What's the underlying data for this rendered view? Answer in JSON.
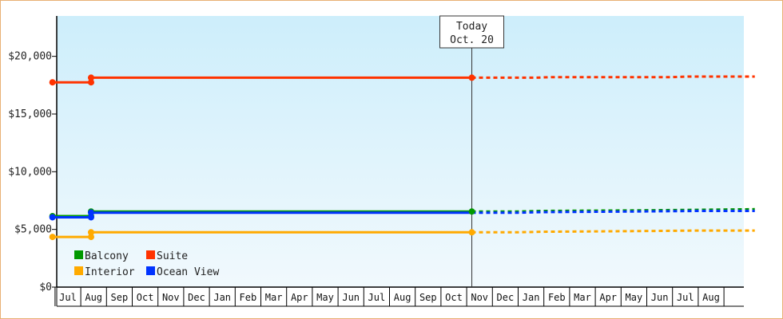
{
  "chart_data": {
    "type": "line",
    "ylim": [
      0,
      23500
    ],
    "yticks": [
      0,
      5000,
      10000,
      15000,
      20000
    ],
    "ytick_labels": [
      "$0",
      "$5,000",
      "$10,000",
      "$15,000",
      "$20,000"
    ],
    "months": [
      "Jul",
      "Aug",
      "Sep",
      "Oct",
      "Nov",
      "Dec",
      "Jan",
      "Feb",
      "Mar",
      "Apr",
      "May",
      "Jun",
      "Jul",
      "Aug",
      "Sep",
      "Oct",
      "Nov",
      "Dec",
      "Jan",
      "Feb",
      "Mar",
      "Apr",
      "May",
      "Jun",
      "Jul",
      "Aug"
    ],
    "today": {
      "line1": "Today",
      "line2": "Oct. 20",
      "x": 15.7
    },
    "series": [
      {
        "name": "Suite",
        "color": "#ff3300",
        "actual": [
          [
            -0.6,
            17750
          ],
          [
            0.9,
            17750
          ],
          [
            0.9,
            18150
          ],
          [
            15.7,
            18150
          ]
        ],
        "forecast": [
          [
            15.7,
            18150
          ],
          [
            18.2,
            18150
          ],
          [
            18.8,
            18200
          ],
          [
            23.5,
            18200
          ],
          [
            24.1,
            18250
          ],
          [
            26.7,
            18250
          ]
        ]
      },
      {
        "name": "Balcony",
        "color": "#009900",
        "actual": [
          [
            -0.6,
            6150
          ],
          [
            0.9,
            6150
          ],
          [
            0.9,
            6550
          ],
          [
            15.7,
            6550
          ]
        ],
        "forecast": [
          [
            15.7,
            6550
          ],
          [
            17.5,
            6550
          ],
          [
            18.4,
            6600
          ],
          [
            22.0,
            6650
          ],
          [
            24.5,
            6700
          ],
          [
            26.7,
            6750
          ]
        ]
      },
      {
        "name": "Ocean View",
        "color": "#0033ff",
        "actual": [
          [
            -0.6,
            6050
          ],
          [
            0.9,
            6050
          ],
          [
            0.9,
            6450
          ],
          [
            15.7,
            6450
          ]
        ],
        "forecast": [
          [
            15.7,
            6450
          ],
          [
            17.5,
            6450
          ],
          [
            18.4,
            6500
          ],
          [
            22.0,
            6550
          ],
          [
            24.5,
            6600
          ],
          [
            26.7,
            6600
          ]
        ]
      },
      {
        "name": "Interior",
        "color": "#ffaa00",
        "actual": [
          [
            -0.6,
            4350
          ],
          [
            0.9,
            4350
          ],
          [
            0.9,
            4750
          ],
          [
            15.7,
            4750
          ]
        ],
        "forecast": [
          [
            15.7,
            4750
          ],
          [
            17.5,
            4750
          ],
          [
            18.4,
            4800
          ],
          [
            22.0,
            4850
          ],
          [
            24.5,
            4900
          ],
          [
            26.7,
            4900
          ]
        ]
      }
    ],
    "markers": [
      {
        "series": "Suite",
        "points": [
          [
            -0.6,
            17750
          ],
          [
            0.9,
            17750
          ],
          [
            0.9,
            18150
          ],
          [
            15.7,
            18150
          ]
        ]
      },
      {
        "series": "Balcony",
        "points": [
          [
            -0.6,
            6150
          ],
          [
            0.9,
            6150
          ],
          [
            0.9,
            6550
          ],
          [
            15.7,
            6550
          ]
        ]
      },
      {
        "series": "Ocean View",
        "points": [
          [
            -0.6,
            6050
          ],
          [
            0.9,
            6050
          ],
          [
            0.9,
            6450
          ]
        ]
      },
      {
        "series": "Interior",
        "points": [
          [
            -0.6,
            4350
          ],
          [
            0.9,
            4350
          ],
          [
            0.9,
            4750
          ],
          [
            15.7,
            4750
          ]
        ]
      }
    ],
    "legend": [
      {
        "name": "Balcony",
        "color": "#009900"
      },
      {
        "name": "Suite",
        "color": "#ff3300"
      },
      {
        "name": "Interior",
        "color": "#ffaa00"
      },
      {
        "name": "Ocean View",
        "color": "#0033ff"
      }
    ],
    "legend_position": "bottom-left",
    "background_gradient": [
      "#cdeefb",
      "#f1f9fd"
    ]
  }
}
